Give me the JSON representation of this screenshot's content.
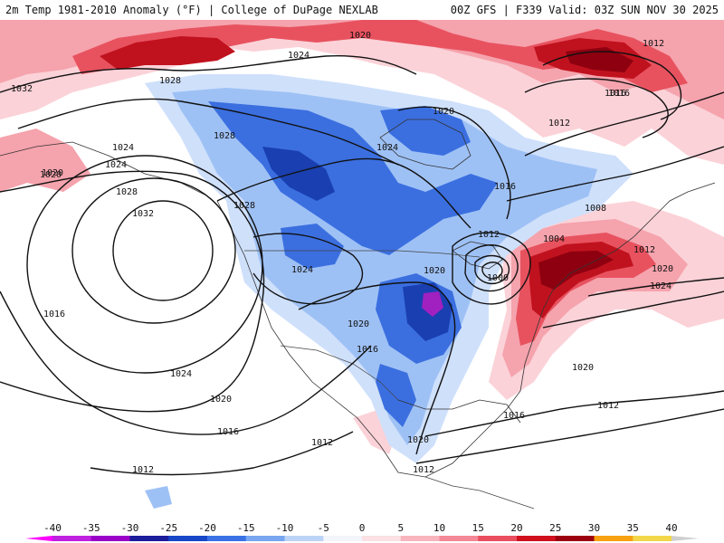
{
  "header": {
    "title_left": "2m Temp 1981-2010 Anomaly (°F) | College of DuPage NEXLAB",
    "title_right": "00Z GFS | F339 Valid: 03Z SUN NOV 30 2025"
  },
  "colors": {
    "cold_strong": "#1a3fb0",
    "cold_mid": "#3b6fe0",
    "cold_light": "#9ec1f5",
    "cold_faint": "#cfe0fb",
    "warm_faint": "#fbd2d8",
    "warm_light": "#f5a3ad",
    "warm_mid": "#e8525f",
    "warm_strong": "#c0121e",
    "warm_extreme": "#8e0010",
    "purple": "#a020c0"
  },
  "isobar_labels": [
    {
      "text": "1020"
    },
    {
      "text": "1024"
    },
    {
      "text": "1028"
    },
    {
      "text": "1032"
    },
    {
      "text": "1028"
    },
    {
      "text": "1024"
    },
    {
      "text": "1020"
    },
    {
      "text": "1024"
    },
    {
      "text": "1028"
    },
    {
      "text": "1032"
    },
    {
      "text": "1028"
    },
    {
      "text": "1024"
    },
    {
      "text": "1016"
    },
    {
      "text": "1024"
    },
    {
      "text": "1020"
    },
    {
      "text": "1016"
    },
    {
      "text": "1012"
    },
    {
      "text": "1012"
    },
    {
      "text": "1020"
    },
    {
      "text": "1024"
    },
    {
      "text": "1016"
    },
    {
      "text": "1012"
    },
    {
      "text": "1008"
    },
    {
      "text": "1004"
    },
    {
      "text": "1000"
    },
    {
      "text": "1012"
    },
    {
      "text": "1020"
    },
    {
      "text": "1020"
    },
    {
      "text": "1016"
    },
    {
      "text": "1020"
    },
    {
      "text": "1016"
    },
    {
      "text": "1020"
    },
    {
      "text": "1012"
    },
    {
      "text": "1012"
    },
    {
      "text": "1016"
    },
    {
      "text": "1012"
    },
    {
      "text": "1020"
    },
    {
      "text": "1024"
    },
    {
      "text": "1020"
    },
    {
      "text": "1012"
    },
    {
      "text": "1016"
    }
  ],
  "colorbar": {
    "ticks": [
      "-40",
      "-35",
      "-30",
      "-25",
      "-20",
      "-15",
      "-10",
      "-5",
      "0",
      "5",
      "10",
      "15",
      "20",
      "25",
      "30",
      "35",
      "40"
    ],
    "colors": [
      "#ff00ff",
      "#c020e0",
      "#9a00c8",
      "#1c1c9c",
      "#1846c8",
      "#3a72e6",
      "#78a6f0",
      "#bcd3f6",
      "#f4f4fb",
      "#fbe0e4",
      "#f8b5bd",
      "#f48896",
      "#ea4e5e",
      "#d0101e",
      "#9c0010",
      "#f7a010",
      "#f3d64a"
    ]
  }
}
